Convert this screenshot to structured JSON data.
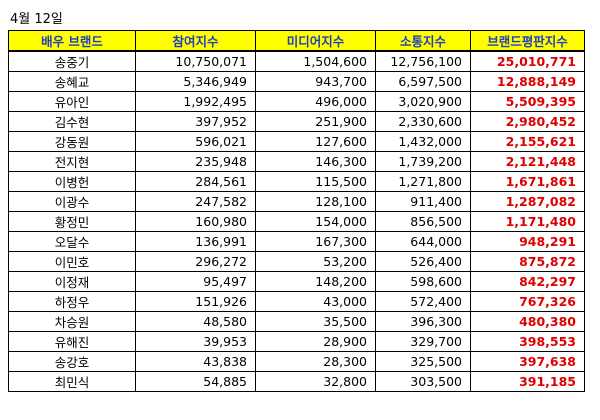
{
  "date": "4월 12일",
  "table": {
    "header": [
      "배우 브랜드",
      "참여지수",
      "미디어지수",
      "소통지수",
      "브랜드평판지수"
    ],
    "rows": [
      [
        "송중기",
        "10,750,071",
        "1,504,600",
        "12,756,100",
        "25,010,771"
      ],
      [
        "송혜교",
        "5,346,949",
        "943,700",
        "6,597,500",
        "12,888,149"
      ],
      [
        "유아인",
        "1,992,495",
        "496,000",
        "3,020,900",
        "5,509,395"
      ],
      [
        "김수현",
        "397,952",
        "251,900",
        "2,330,600",
        "2,980,452"
      ],
      [
        "강동원",
        "596,021",
        "127,600",
        "1,432,000",
        "2,155,621"
      ],
      [
        "전지현",
        "235,948",
        "146,300",
        "1,739,200",
        "2,121,448"
      ],
      [
        "이병헌",
        "284,561",
        "115,500",
        "1,271,800",
        "1,671,861"
      ],
      [
        "이광수",
        "247,582",
        "128,100",
        "911,400",
        "1,287,082"
      ],
      [
        "황정민",
        "160,980",
        "154,000",
        "856,500",
        "1,171,480"
      ],
      [
        "오달수",
        "136,991",
        "167,300",
        "644,000",
        "948,291"
      ],
      [
        "이민호",
        "296,272",
        "53,200",
        "526,400",
        "875,872"
      ],
      [
        "이정재",
        "95,497",
        "148,200",
        "598,600",
        "842,297"
      ],
      [
        "하정우",
        "151,926",
        "43,000",
        "572,400",
        "767,326"
      ],
      [
        "차승원",
        "48,580",
        "35,500",
        "396,300",
        "480,380"
      ],
      [
        "유해진",
        "39,953",
        "28,900",
        "329,700",
        "398,553"
      ],
      [
        "송강호",
        "43,838",
        "28,300",
        "325,500",
        "397,638"
      ],
      [
        "최민식",
        "54,885",
        "32,800",
        "303,500",
        "391,185"
      ]
    ]
  }
}
